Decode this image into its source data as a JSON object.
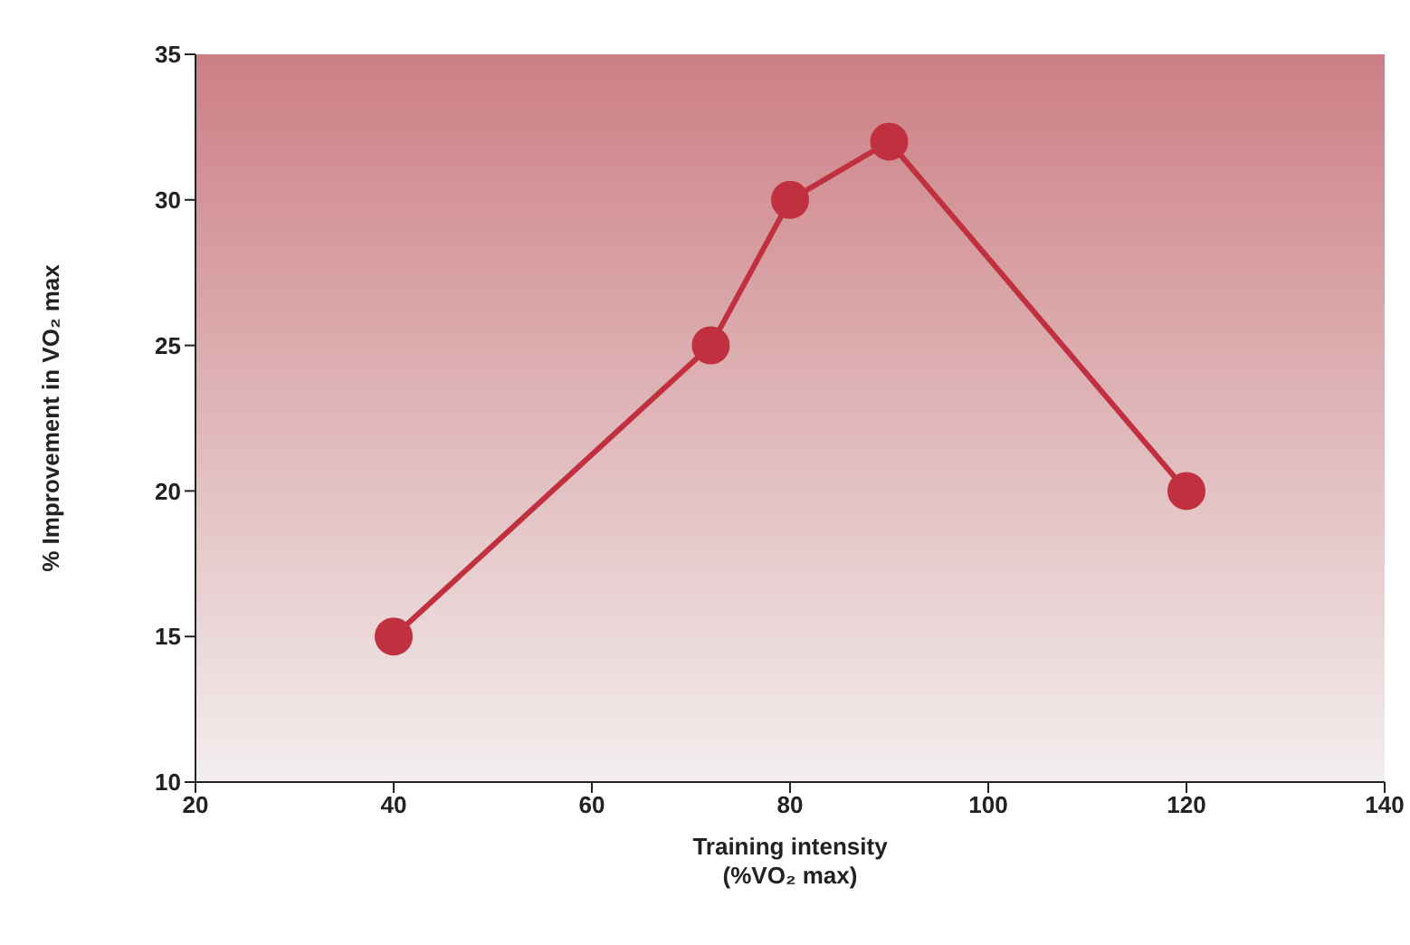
{
  "chart_data": {
    "type": "line",
    "xlabel": "Training intensity\n(%VO₂ max)",
    "ylabel": "% Improvement in VO₂ max",
    "x": [
      40,
      72,
      80,
      90,
      120
    ],
    "series": [
      {
        "color": "#c0303e",
        "values": [
          15,
          25,
          30,
          32,
          20
        ]
      }
    ],
    "xlim": [
      20,
      140
    ],
    "xticks": [
      20,
      40,
      60,
      80,
      100,
      120,
      140
    ],
    "ylim": [
      10,
      35
    ],
    "yticks": [
      10,
      15,
      20,
      25,
      30,
      35
    ],
    "grid": false,
    "legend": false,
    "marker": "circle",
    "line_style": "solid"
  }
}
